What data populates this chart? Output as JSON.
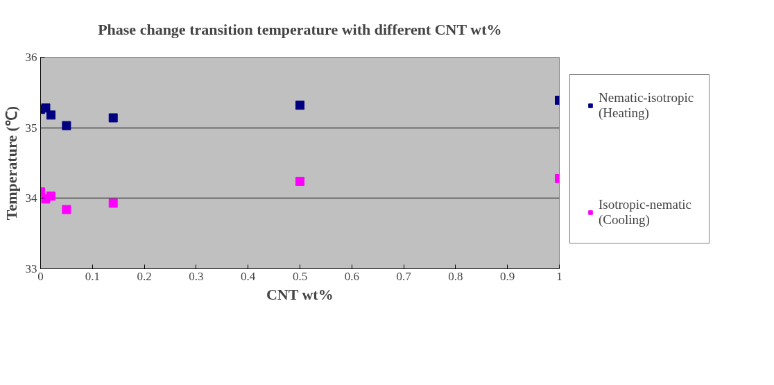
{
  "chart_data": {
    "type": "scatter",
    "title": "Phase change transition temperature with different CNT wt%",
    "xlabel": "CNT wt%",
    "ylabel": "Temperature (℃)",
    "x": [
      0,
      0.01,
      0.02,
      0.05,
      0.14,
      0.5,
      1
    ],
    "series": [
      {
        "name": "Nematic-isotropic (Heating)",
        "color": "#000080",
        "values": [
          35.26,
          35.28,
          35.18,
          35.03,
          35.14,
          35.32,
          35.39
        ]
      },
      {
        "name": "Isotropic-nematic (Cooling)",
        "color": "#ff00ff",
        "values": [
          34.09,
          33.99,
          34.03,
          33.84,
          33.93,
          34.24,
          34.28
        ]
      }
    ],
    "xlim": [
      0,
      1
    ],
    "xticks": [
      0,
      0.1,
      0.2,
      0.3,
      0.4,
      0.5,
      0.6,
      0.7,
      0.8,
      0.9,
      1
    ],
    "ylim": [
      33,
      36
    ],
    "yticks": [
      33,
      34,
      35,
      36
    ],
    "grid": "y",
    "legend": "right",
    "marker": "square"
  }
}
